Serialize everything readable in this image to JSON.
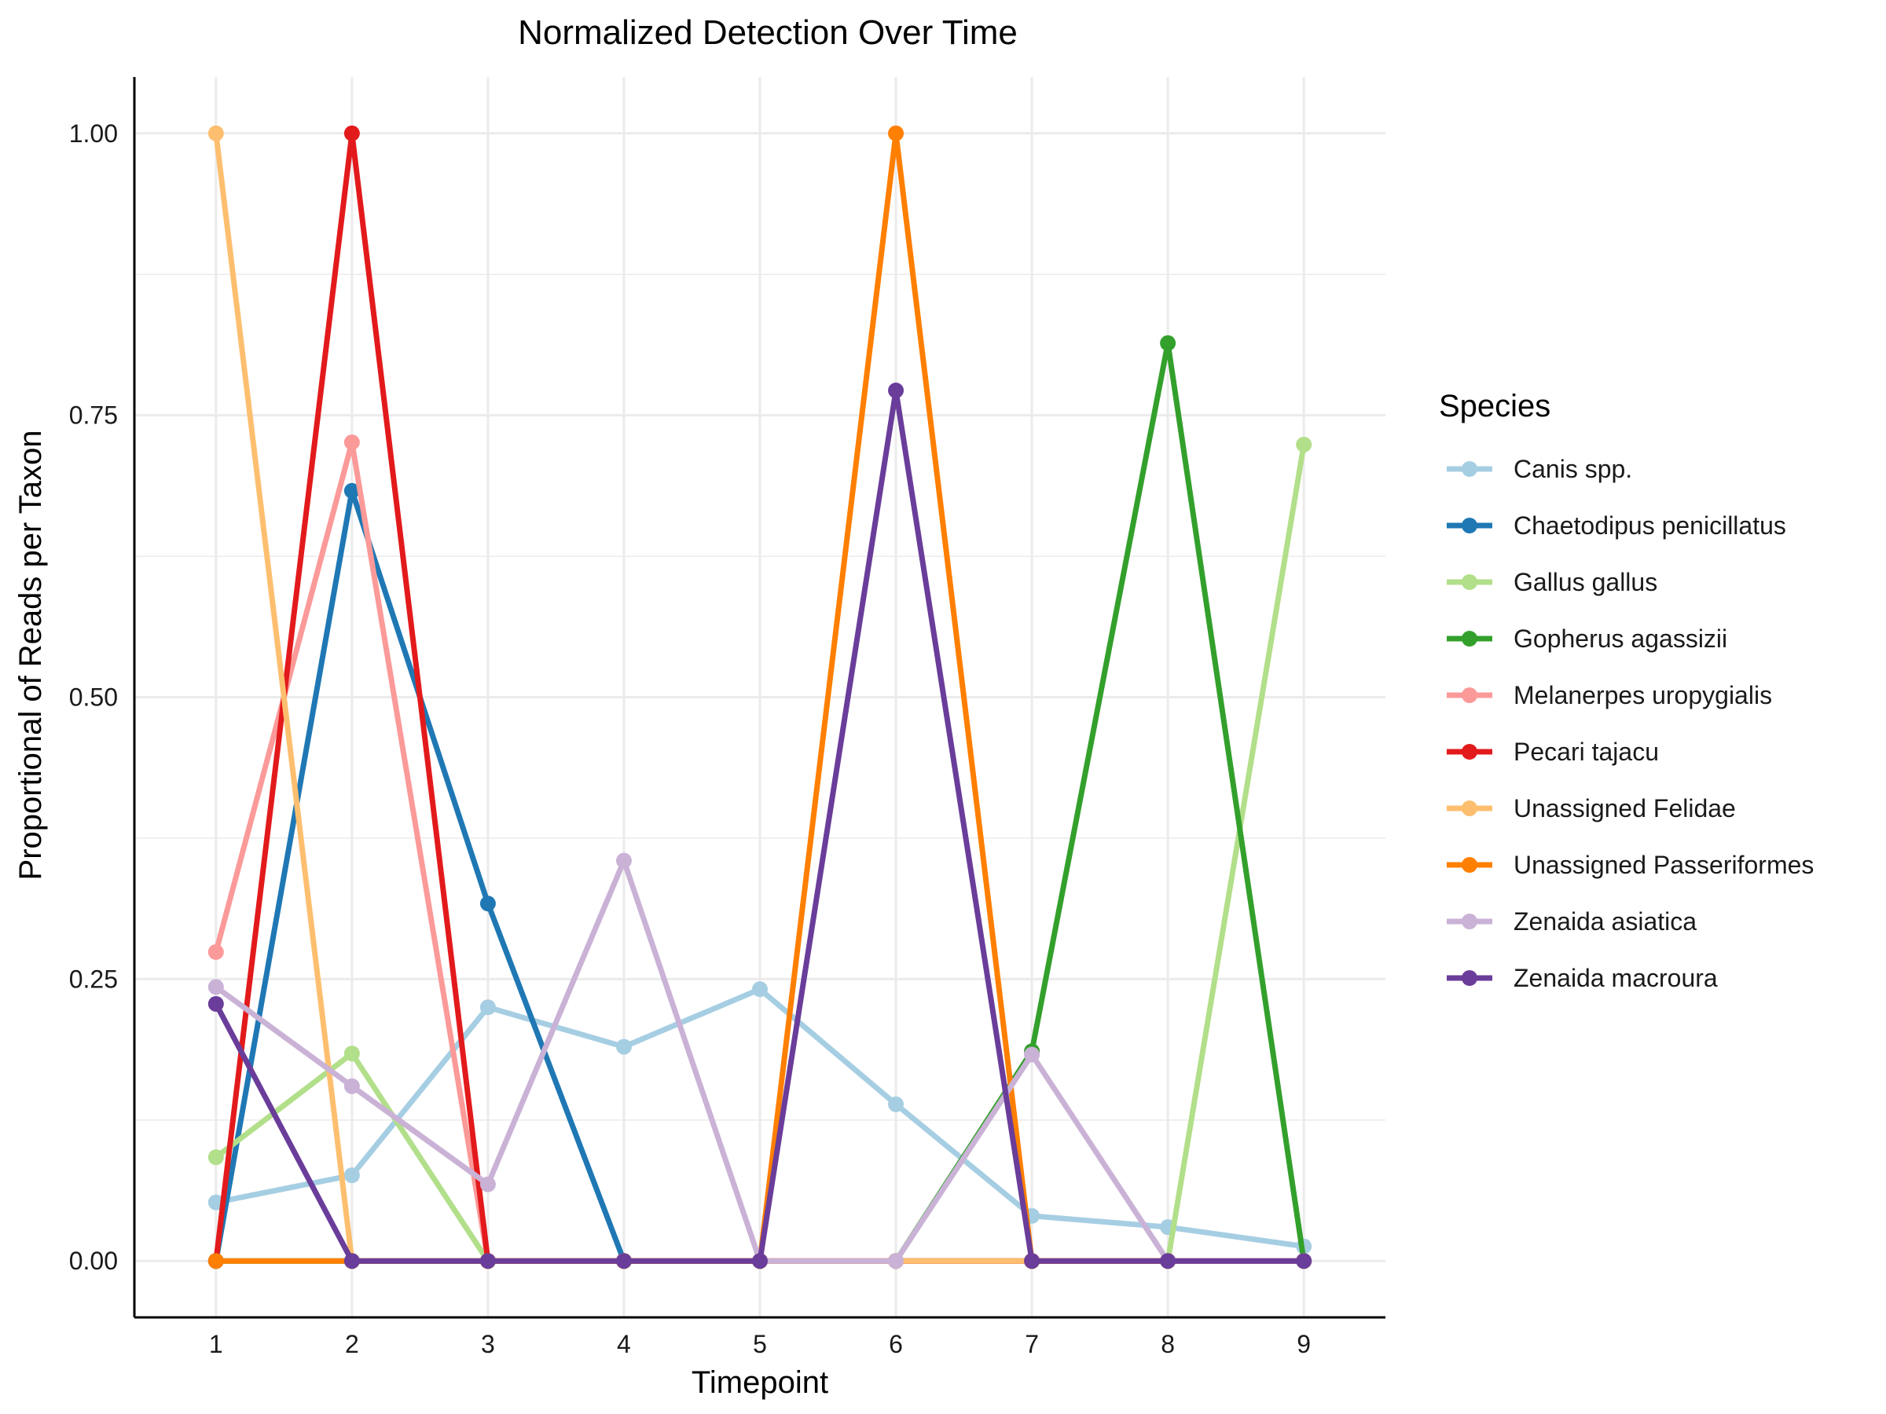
{
  "chart_data": {
    "type": "line",
    "title": "Normalized Detection Over Time",
    "xlabel": "Timepoint",
    "ylabel": "Proportional of Reads per Taxon",
    "x": [
      1,
      2,
      3,
      4,
      5,
      6,
      7,
      8,
      9
    ],
    "xticks": [
      "1",
      "2",
      "3",
      "4",
      "5",
      "6",
      "7",
      "8",
      "9"
    ],
    "yticks": [
      0,
      0.25,
      0.5,
      0.75,
      1.0
    ],
    "ytick_labels": [
      "0.00",
      "0.25",
      "0.50",
      "0.75",
      "1.00"
    ],
    "xlim": [
      0.4,
      9.6
    ],
    "ylim": [
      -0.05,
      1.05
    ],
    "grid": true,
    "legend_title": "Species",
    "legend_position": "right",
    "series": [
      {
        "name": "Canis spp.",
        "color": "#a6cee3",
        "values": [
          0.052,
          0.076,
          0.225,
          0.19,
          0.241,
          0.139,
          0.04,
          0.03,
          0.013
        ]
      },
      {
        "name": "Chaetodipus penicillatus",
        "color": "#1f78b4",
        "values": [
          0,
          0.683,
          0.317,
          0,
          0,
          0,
          0,
          0,
          0
        ]
      },
      {
        "name": "Gallus gallus",
        "color": "#b2df8a",
        "values": [
          0.092,
          0.184,
          0,
          0,
          0,
          0,
          0,
          0,
          0.724
        ]
      },
      {
        "name": "Gopherus agassizii",
        "color": "#33a02c",
        "values": [
          0,
          0,
          0,
          0,
          0,
          0,
          0.186,
          0.814,
          0
        ]
      },
      {
        "name": "Melanerpes uropygialis",
        "color": "#fb9a99",
        "values": [
          0.274,
          0.726,
          0,
          0,
          0,
          0,
          0,
          0,
          0
        ]
      },
      {
        "name": "Pecari tajacu",
        "color": "#e31a1c",
        "values": [
          0,
          1.0,
          0,
          0,
          0,
          0,
          0,
          0,
          0
        ]
      },
      {
        "name": "Unassigned Felidae",
        "color": "#fdbf6f",
        "values": [
          1.0,
          0,
          0,
          0,
          0,
          0,
          0,
          0,
          0
        ]
      },
      {
        "name": "Unassigned Passeriformes",
        "color": "#ff7f00",
        "values": [
          0,
          0,
          0,
          0,
          0,
          1.0,
          0,
          0,
          0
        ]
      },
      {
        "name": "Zenaida asiatica",
        "color": "#cab2d6",
        "values": [
          0.243,
          0.155,
          0.068,
          0.355,
          0,
          0,
          0.183,
          0,
          0
        ]
      },
      {
        "name": "Zenaida macroura",
        "color": "#6a3d9a",
        "values": [
          0.228,
          0,
          0,
          0,
          0,
          0.772,
          0,
          0,
          0
        ]
      }
    ]
  }
}
